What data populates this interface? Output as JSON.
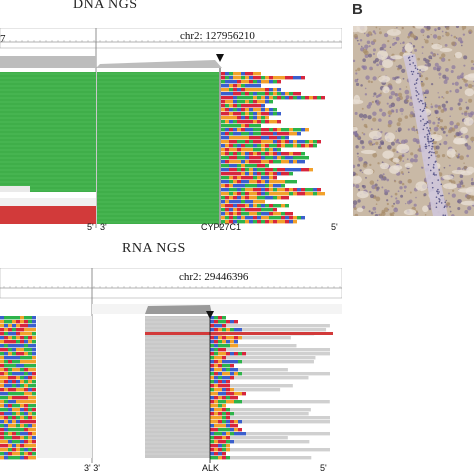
{
  "panel_a": {
    "dna_title": "DNA  NGS",
    "dna_chr_left": "7",
    "dna_chr_label": "chr2: 127956210",
    "dna_bottom_5_left": "5'",
    "dna_bottom_3": "3'",
    "dna_gene": "CYP27C1",
    "dna_bottom_5_right": "5'",
    "rna_title": "RNA  NGS",
    "rna_chr_label": "chr2: 29446396",
    "rna_bottom_3_left": "3' 3'",
    "rna_gene": "ALK",
    "rna_bottom_5_right": "5'",
    "colors": {
      "green_reads": "#3fae49",
      "gray_reads": "#c8c8c8",
      "red_reads": "#d23a3a",
      "snp_a": "#2db34a",
      "snp_c": "#3a5fcd",
      "snp_g": "#f2a12b",
      "snp_t": "#d7263d"
    }
  },
  "panel_b": {
    "label": "B",
    "image": "ihc-stain-tissue"
  }
}
